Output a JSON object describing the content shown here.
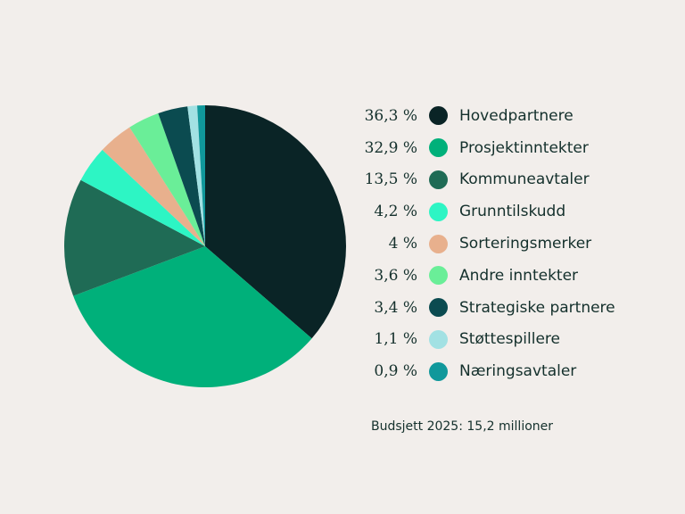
{
  "chart_data": {
    "type": "pie",
    "title": "",
    "slices": [
      {
        "label": "Hovedpartnere",
        "value": 36.3,
        "value_text": "36,3 %",
        "color": "#0a2426"
      },
      {
        "label": "Prosjektinntekter",
        "value": 32.9,
        "value_text": "32,9 %",
        "color": "#00b07a"
      },
      {
        "label": "Kommuneavtaler",
        "value": 13.5,
        "value_text": "13,5 %",
        "color": "#1f6b55"
      },
      {
        "label": "Grunntilskudd",
        "value": 4.2,
        "value_text": "4,2 %",
        "color": "#2df5c4"
      },
      {
        "label": "Sorteringsmerker",
        "value": 4,
        "value_text": "4 %",
        "color": "#e8b08d"
      },
      {
        "label": "Andre inntekter",
        "value": 3.6,
        "value_text": "3,6 %",
        "color": "#6aee98"
      },
      {
        "label": "Strategiske partnere",
        "value": 3.4,
        "value_text": "3,4 %",
        "color": "#0b4b50"
      },
      {
        "label": "Støttespillere",
        "value": 1.1,
        "value_text": "1,1 %",
        "color": "#a2e1e3"
      },
      {
        "label": "Næringsavtaler",
        "value": 0.9,
        "value_text": "0,9 %",
        "color": "#10989b"
      }
    ],
    "legend_position": "right"
  },
  "footnote": "Budsjett 2025: 15,2 millioner"
}
